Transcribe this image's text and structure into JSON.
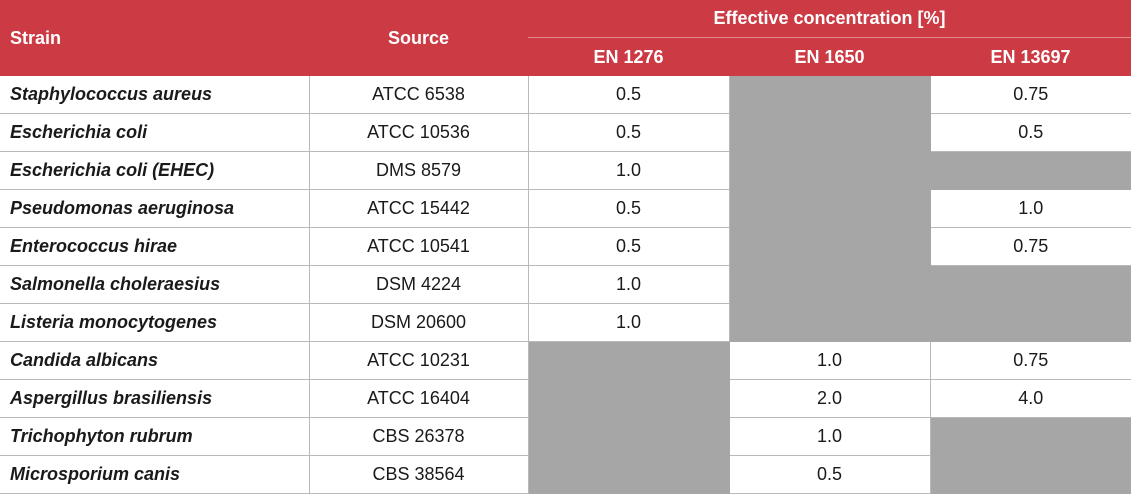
{
  "header": {
    "strain": "Strain",
    "source": "Source",
    "effective": "Effective concentration [%]",
    "en1276": "EN 1276",
    "en1650": "EN 1650",
    "en13697": "EN 13697"
  },
  "colors": {
    "header_bg": "#cc3a44",
    "na_cell": "#a6a6a6"
  },
  "rows": [
    {
      "strain": "Staphylococcus aureus",
      "source": "ATCC 6538",
      "en1276": "0.5",
      "en1650": "",
      "en13697": "0.75"
    },
    {
      "strain": "Escherichia coli",
      "source": "ATCC 10536",
      "en1276": "0.5",
      "en1650": "",
      "en13697": "0.5"
    },
    {
      "strain": "Escherichia coli (EHEC)",
      "source": "DMS 8579",
      "en1276": "1.0",
      "en1650": "",
      "en13697": ""
    },
    {
      "strain": "Pseudomonas aeruginosa",
      "source": "ATCC 15442",
      "en1276": "0.5",
      "en1650": "",
      "en13697": "1.0"
    },
    {
      "strain": "Enterococcus hirae",
      "source": "ATCC 10541",
      "en1276": "0.5",
      "en1650": "",
      "en13697": "0.75"
    },
    {
      "strain": "Salmonella choleraesius",
      "source": "DSM 4224",
      "en1276": "1.0",
      "en1650": "",
      "en13697": ""
    },
    {
      "strain": "Listeria monocytogenes",
      "source": "DSM 20600",
      "en1276": "1.0",
      "en1650": "",
      "en13697": ""
    },
    {
      "strain": "Candida albicans",
      "source": "ATCC 10231",
      "en1276": "",
      "en1650": "1.0",
      "en13697": "0.75"
    },
    {
      "strain": "Aspergillus brasiliensis",
      "source": "ATCC 16404",
      "en1276": "",
      "en1650": "2.0",
      "en13697": "4.0"
    },
    {
      "strain": "Trichophyton rubrum",
      "source": "CBS 26378",
      "en1276": "",
      "en1650": "1.0",
      "en13697": ""
    },
    {
      "strain": "Microsporium canis",
      "source": "CBS 38564",
      "en1276": "",
      "en1650": "0.5",
      "en13697": ""
    }
  ]
}
